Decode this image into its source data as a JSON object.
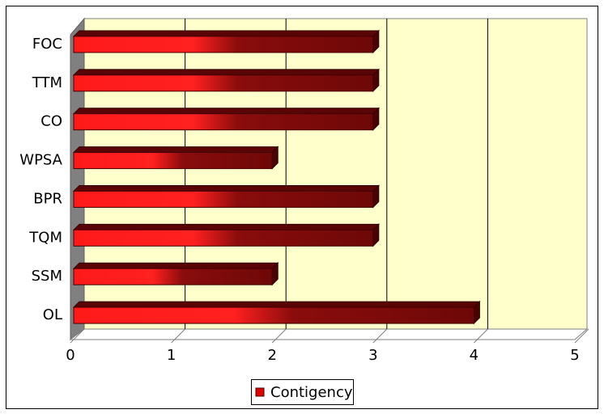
{
  "chart_data": {
    "type": "bar",
    "orientation": "horizontal",
    "categories": [
      "OL",
      "SSM",
      "TQM",
      "BPR",
      "WPSA",
      "CO",
      "TTM",
      "FOC"
    ],
    "series": [
      {
        "name": "Contigency",
        "color": "#ff1a1a",
        "values": [
          4,
          2,
          3,
          3,
          2,
          3,
          3,
          3
        ]
      }
    ],
    "xlim": [
      0,
      5
    ],
    "xticks": [
      0,
      1,
      2,
      3,
      4,
      5
    ],
    "grid": true,
    "legend": "bottom"
  }
}
